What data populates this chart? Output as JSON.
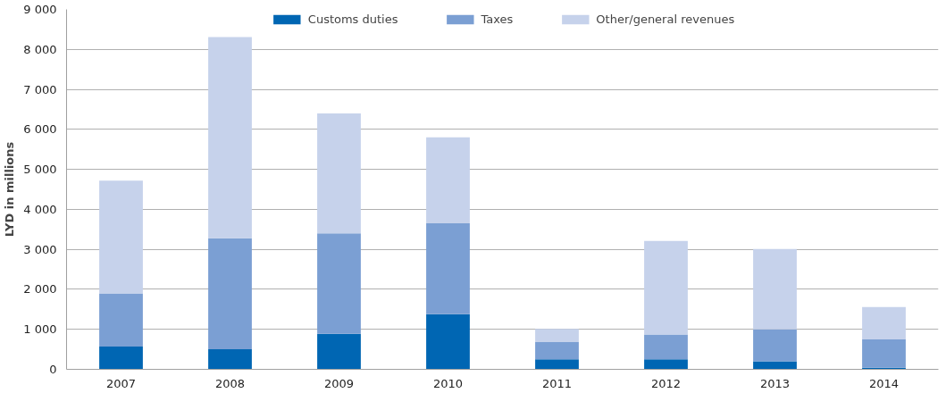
{
  "chart_data": {
    "type": "bar",
    "stacked": true,
    "ylabel": "LYD in millions",
    "categories": [
      "2007",
      "2008",
      "2009",
      "2010",
      "2011",
      "2012",
      "2013",
      "2014"
    ],
    "series": [
      {
        "name": "Customs duties",
        "color": "#0066b3",
        "values": [
          570,
          500,
          890,
          1380,
          250,
          250,
          200,
          40
        ]
      },
      {
        "name": "Taxes",
        "color": "#7b9fd3",
        "values": [
          1330,
          2780,
          2510,
          2270,
          430,
          620,
          800,
          710
        ]
      },
      {
        "name": "Other/general revenues",
        "color": "#c6d2eb",
        "values": [
          2820,
          5030,
          3000,
          2150,
          330,
          2340,
          2010,
          810
        ]
      }
    ],
    "ylim": [
      0,
      9000
    ],
    "yticks": [
      {
        "value": 0,
        "label": "0"
      },
      {
        "value": 1000,
        "label": "1 000"
      },
      {
        "value": 2000,
        "label": "2 000"
      },
      {
        "value": 3000,
        "label": "3 000"
      },
      {
        "value": 4000,
        "label": "4 000"
      },
      {
        "value": 5000,
        "label": "5 000"
      },
      {
        "value": 6000,
        "label": "6 000"
      },
      {
        "value": 7000,
        "label": "7 000"
      },
      {
        "value": 8000,
        "label": "8 000"
      },
      {
        "value": 9000,
        "label": "9 000"
      }
    ],
    "grid": "y",
    "legend": "top"
  }
}
